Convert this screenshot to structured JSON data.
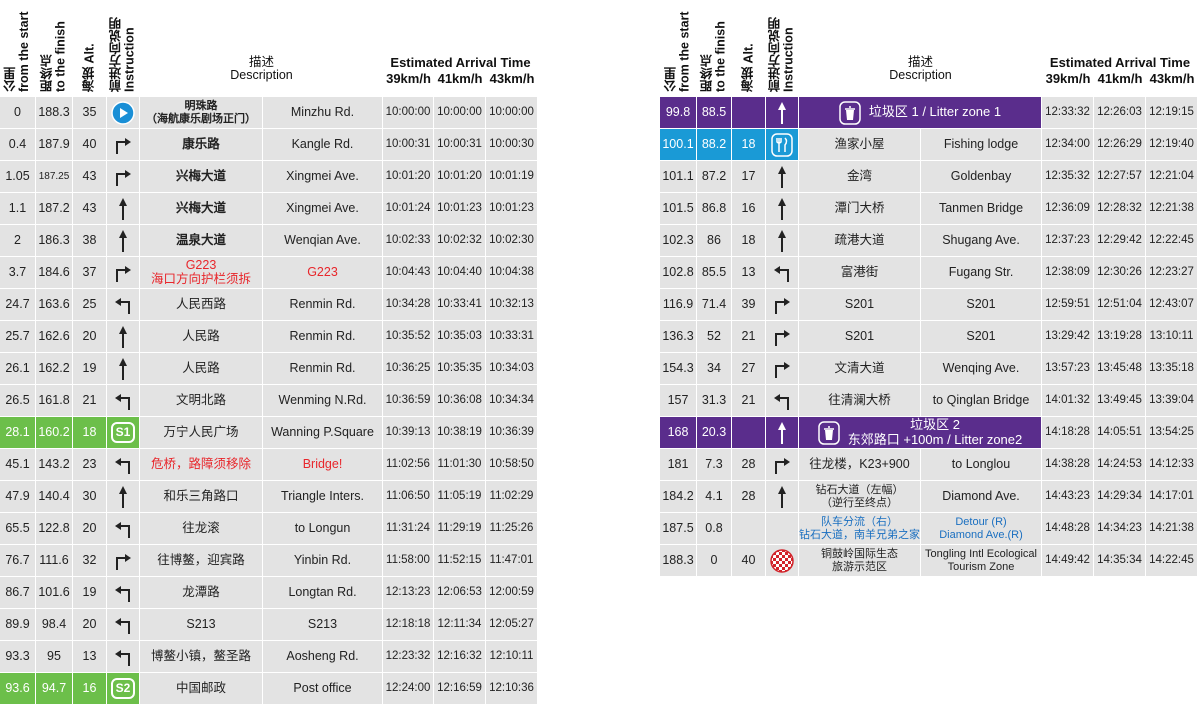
{
  "header": {
    "km": "公里\nfrom the start",
    "finish": "距终点\nto the finish",
    "alt": "海拔 Alt.",
    "instruction": "前进方向说明\nInstruction",
    "desc": "描述\nDescription",
    "eta": "Estimated Arrival Time",
    "speeds": [
      "39km/h",
      "41km/h",
      "43km/h"
    ]
  },
  "left": [
    {
      "km": 0,
      "finish": 188.3,
      "alt": 35,
      "cn": "明珠路\n（海航康乐剧场正门）",
      "en": "Minzhu Rd.",
      "times": [
        "10:00:00",
        "10:00:00",
        "10:00:00"
      ]
    },
    {
      "km": 0.4,
      "finish": 187.9,
      "alt": 40,
      "cn": "康乐路",
      "en": "Kangle Rd.",
      "times": [
        "10:00:31",
        "10:00:31",
        "10:00:30"
      ]
    },
    {
      "km": 1.05,
      "finish": 187.25,
      "alt": 43,
      "cn": "兴梅大道",
      "en": "Xingmei Ave.",
      "times": [
        "10:01:20",
        "10:01:20",
        "10:01:19"
      ]
    },
    {
      "km": 1.1,
      "finish": 187.2,
      "alt": 43,
      "cn": "兴梅大道",
      "en": "Xingmei Ave.",
      "times": [
        "10:01:24",
        "10:01:23",
        "10:01:23"
      ]
    },
    {
      "km": 2,
      "finish": 186.3,
      "alt": 38,
      "cn": "温泉大道",
      "en": "Wenqian Ave.",
      "times": [
        "10:02:33",
        "10:02:32",
        "10:02:30"
      ]
    },
    {
      "km": 3.7,
      "finish": 184.6,
      "alt": 37,
      "cn": "G223\n海口方向护栏须拆",
      "en": "G223",
      "times": [
        "10:04:43",
        "10:04:40",
        "10:04:38"
      ]
    },
    {
      "km": 24.7,
      "finish": 163.6,
      "alt": 25,
      "cn": "人民西路",
      "en": "Renmin Rd.",
      "times": [
        "10:34:28",
        "10:33:41",
        "10:32:13"
      ]
    },
    {
      "km": 25.7,
      "finish": 162.6,
      "alt": 20,
      "cn": "人民路",
      "en": "Renmin Rd.",
      "times": [
        "10:35:52",
        "10:35:03",
        "10:33:31"
      ]
    },
    {
      "km": 26.1,
      "finish": 162.2,
      "alt": 19,
      "cn": "人民路",
      "en": "Renmin Rd.",
      "times": [
        "10:36:25",
        "10:35:35",
        "10:34:03"
      ]
    },
    {
      "km": 26.5,
      "finish": 161.8,
      "alt": 21,
      "cn": "文明北路",
      "en": "Wenming N.Rd.",
      "times": [
        "10:36:59",
        "10:36:08",
        "10:34:34"
      ]
    },
    {
      "km": 28.1,
      "finish": 160.2,
      "alt": 18,
      "icon": "S1",
      "cn": "万宁人民广场",
      "en": "Wanning P.Square",
      "times": [
        "10:39:13",
        "10:38:19",
        "10:36:39"
      ]
    },
    {
      "km": 45.1,
      "finish": 143.2,
      "alt": 23,
      "cn": "危桥，路障须移除",
      "en": "Bridge!",
      "times": [
        "11:02:56",
        "11:01:30",
        "10:58:50"
      ]
    },
    {
      "km": 47.9,
      "finish": 140.4,
      "alt": 30,
      "cn": "和乐三角路口",
      "en": "Triangle Inters.",
      "times": [
        "11:06:50",
        "11:05:19",
        "11:02:29"
      ]
    },
    {
      "km": 65.5,
      "finish": 122.8,
      "alt": 20,
      "cn": "往龙滚",
      "en": "to Longun",
      "times": [
        "11:31:24",
        "11:29:19",
        "11:25:26"
      ]
    },
    {
      "km": 76.7,
      "finish": 111.6,
      "alt": 32,
      "cn": "往博鳌，迎宾路",
      "en": "Yinbin Rd.",
      "times": [
        "11:58:00",
        "11:52:15",
        "11:47:01"
      ]
    },
    {
      "km": 86.7,
      "finish": 101.6,
      "alt": 19,
      "cn": "龙潭路",
      "en": "Longtan Rd.",
      "times": [
        "12:13:23",
        "12:06:53",
        "12:00:59"
      ]
    },
    {
      "km": 89.9,
      "finish": 98.4,
      "alt": 20,
      "cn": "S213",
      "en": "S213",
      "times": [
        "12:18:18",
        "12:11:34",
        "12:05:27"
      ]
    },
    {
      "km": 93.3,
      "finish": 95,
      "alt": 13,
      "cn": "博鳌小镇，鳌圣路",
      "en": "Aosheng Rd.",
      "times": [
        "12:23:32",
        "12:16:32",
        "12:10:11"
      ]
    },
    {
      "km": 93.6,
      "finish": 94.7,
      "alt": 16,
      "icon": "S2",
      "cn": "中国邮政",
      "en": "Post office",
      "times": [
        "12:24:00",
        "12:16:59",
        "12:10:36"
      ]
    }
  ],
  "right": [
    {
      "km": 99.8,
      "finish": 88.5,
      "desc": "垃圾区 1 / Litter zone 1",
      "times": [
        "12:33:32",
        "12:26:03",
        "12:19:15"
      ]
    },
    {
      "km": 100.1,
      "finish": 88.2,
      "alt": 18,
      "cn": "渔家小屋",
      "en": "Fishing lodge",
      "times": [
        "12:34:00",
        "12:26:29",
        "12:19:40"
      ]
    },
    {
      "km": 101.1,
      "finish": 87.2,
      "alt": 17,
      "cn": "金湾",
      "en": "Goldenbay",
      "times": [
        "12:35:32",
        "12:27:57",
        "12:21:04"
      ]
    },
    {
      "km": 101.5,
      "finish": 86.8,
      "alt": 16,
      "cn": "潭门大桥",
      "en": "Tanmen Bridge",
      "times": [
        "12:36:09",
        "12:28:32",
        "12:21:38"
      ]
    },
    {
      "km": 102.3,
      "finish": 86,
      "alt": 18,
      "cn": "疏港大道",
      "en": "Shugang Ave.",
      "times": [
        "12:37:23",
        "12:29:42",
        "12:22:45"
      ]
    },
    {
      "km": 102.8,
      "finish": 85.5,
      "alt": 13,
      "cn": "富港街",
      "en": "Fugang Str.",
      "times": [
        "12:38:09",
        "12:30:26",
        "12:23:27"
      ]
    },
    {
      "km": 116.9,
      "finish": 71.4,
      "alt": 39,
      "cn": "S201",
      "en": "S201",
      "times": [
        "12:59:51",
        "12:51:04",
        "12:43:07"
      ]
    },
    {
      "km": 136.3,
      "finish": 52,
      "alt": 21,
      "cn": "S201",
      "en": "S201",
      "times": [
        "13:29:42",
        "13:19:28",
        "13:10:11"
      ]
    },
    {
      "km": 154.3,
      "finish": 34,
      "alt": 27,
      "cn": "文清大道",
      "en": "Wenqing Ave.",
      "times": [
        "13:57:23",
        "13:45:48",
        "13:35:18"
      ]
    },
    {
      "km": 157,
      "finish": 31.3,
      "alt": 21,
      "cn": "往清澜大桥",
      "en": "to Qinglan Bridge",
      "times": [
        "14:01:32",
        "13:49:45",
        "13:39:04"
      ]
    },
    {
      "km": 168,
      "finish": 20.3,
      "desc": "垃圾区 2\n东郊路口 +100m / Litter zone2",
      "times": [
        "14:18:28",
        "14:05:51",
        "13:54:25"
      ]
    },
    {
      "km": 181,
      "finish": 7.3,
      "alt": 28,
      "cn": "往龙楼，K23+900",
      "en": "to Longlou",
      "times": [
        "14:38:28",
        "14:24:53",
        "14:12:33"
      ]
    },
    {
      "km": 184.2,
      "finish": 4.1,
      "alt": 28,
      "cn": "钻石大道（左幅）\n（逆行至终点）",
      "en": "Diamond Ave.",
      "times": [
        "14:43:23",
        "14:29:34",
        "14:17:01"
      ]
    },
    {
      "km": 187.5,
      "finish": 0.8,
      "cn": "队车分流（右）\n钻石大道，南羊兄弟之家",
      "en": "Detour (R)\nDiamond Ave.(R)",
      "times": [
        "14:48:28",
        "14:34:23",
        "14:21:38"
      ]
    },
    {
      "km": 188.3,
      "finish": 0,
      "alt": 40,
      "cn": "铜鼓岭国际生态\n旅游示范区",
      "en": "Tongling Intl Ecological\nTourism Zone",
      "times": [
        "14:49:42",
        "14:35:34",
        "14:22:45"
      ]
    }
  ]
}
